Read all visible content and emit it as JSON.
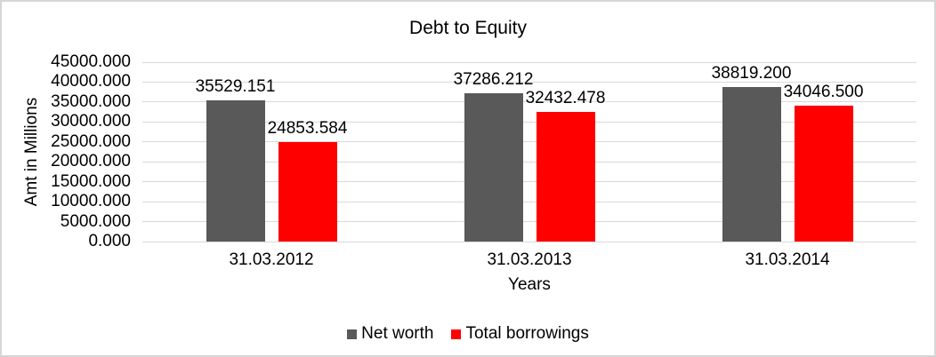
{
  "chart_data": {
    "type": "bar",
    "title": "Debt to Equity",
    "xlabel": "Years",
    "ylabel": "Amt in Millions",
    "categories": [
      "31.03.2012",
      "31.03.2013",
      "31.03.2014"
    ],
    "series": [
      {
        "name": "Net worth",
        "color": "#595959",
        "values": [
          35529.151,
          37286.212,
          38819.2
        ],
        "value_labels": [
          "35529.151",
          "37286.212",
          "38819.200"
        ]
      },
      {
        "name": "Total borrowings",
        "color": "#ff0000",
        "values": [
          24853.584,
          32432.478,
          34046.5
        ],
        "value_labels": [
          "24853.584",
          "32432.478",
          "34046.500"
        ]
      }
    ],
    "ylim": [
      0,
      45000
    ],
    "ytick_step": 5000,
    "ytick_labels": [
      "45000.000",
      "40000.000",
      "35000.000",
      "30000.000",
      "25000.000",
      "20000.000",
      "15000.000",
      "10000.000",
      "5000.000",
      "0.000"
    ],
    "grid": true,
    "legend_position": "bottom",
    "colors": {
      "grid": "#d9d9d9",
      "text": "#000000",
      "background": "#ffffff",
      "frame_border": "#d6d6d6"
    }
  }
}
